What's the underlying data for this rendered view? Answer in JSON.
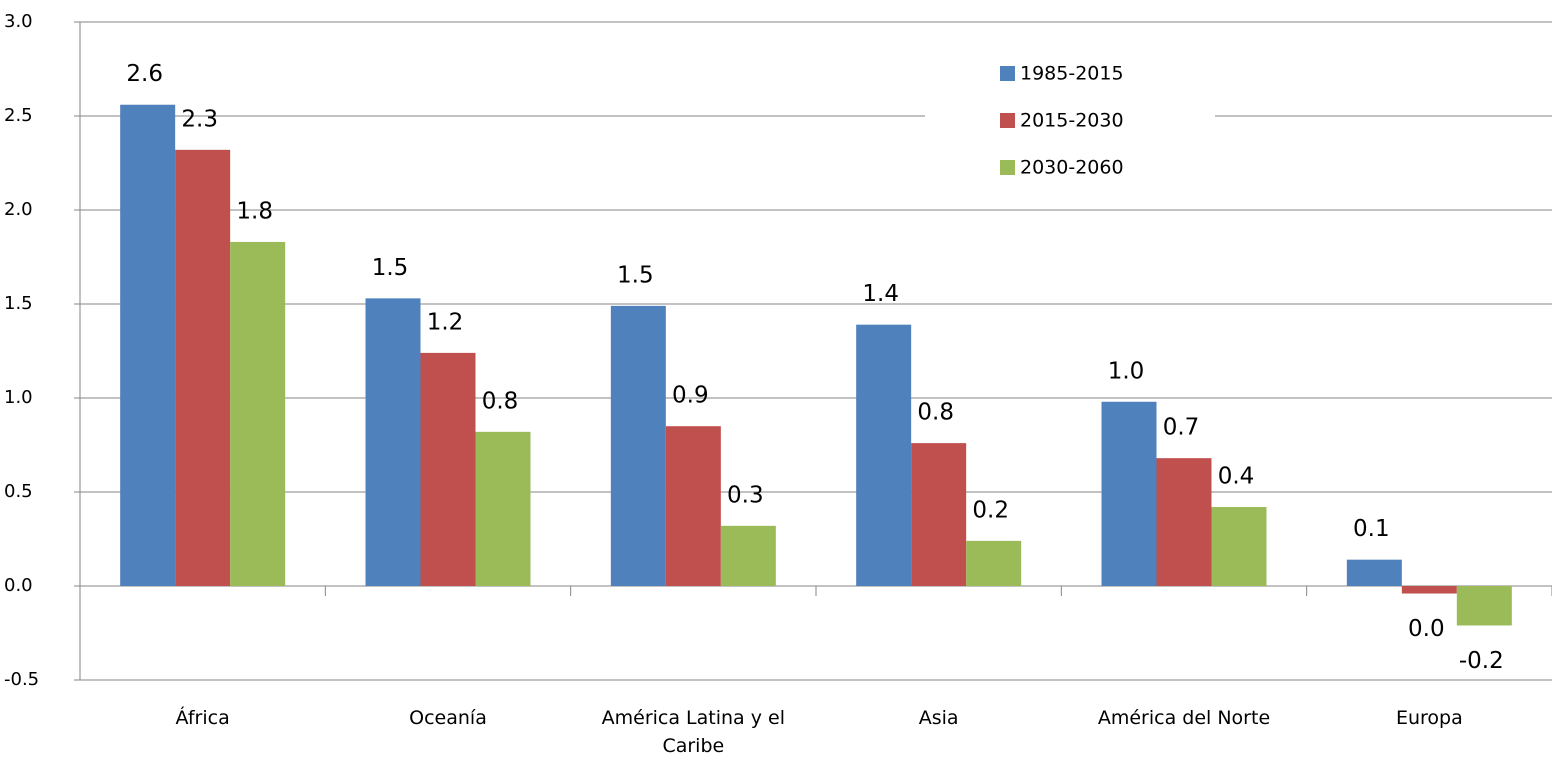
{
  "chart_data": {
    "type": "bar",
    "categories": [
      "África",
      "Oceanía",
      "América Latina y el Caribe",
      "Asia",
      "América del Norte",
      "Europa"
    ],
    "series": [
      {
        "name": "1985-2015",
        "color": "#4f81bd",
        "values": [
          2.56,
          1.53,
          1.49,
          1.39,
          0.98,
          0.14
        ],
        "value_labels": [
          "2.6",
          "1.5",
          "1.5",
          "1.4",
          "1.0",
          "0.1"
        ]
      },
      {
        "name": "2015-2030",
        "color": "#c0504d",
        "values": [
          2.32,
          1.24,
          0.85,
          0.76,
          0.68,
          -0.04
        ],
        "value_labels": [
          "2.3",
          "1.2",
          "0.9",
          "0.8",
          "0.7",
          "0.0"
        ]
      },
      {
        "name": "2030-2060",
        "color": "#9bbb59",
        "values": [
          1.83,
          0.82,
          0.32,
          0.24,
          0.42,
          -0.21
        ],
        "value_labels": [
          "1.8",
          "0.8",
          "0.3",
          "0.2",
          "0.4",
          "-0.2"
        ]
      }
    ],
    "ylim": [
      -0.5,
      3.0
    ],
    "yticks": [
      {
        "value": -0.5,
        "label": "-0.5"
      },
      {
        "value": 0,
        "label": "0.0"
      },
      {
        "value": 0.5,
        "label": "0.5"
      },
      {
        "value": 1,
        "label": "1.0"
      },
      {
        "value": 1.5,
        "label": "1.5"
      },
      {
        "value": 2,
        "label": "2.0"
      },
      {
        "value": 2.5,
        "label": "2.5"
      },
      {
        "value": 3,
        "label": "3.0"
      }
    ],
    "grid": true,
    "legend": "upper right"
  }
}
